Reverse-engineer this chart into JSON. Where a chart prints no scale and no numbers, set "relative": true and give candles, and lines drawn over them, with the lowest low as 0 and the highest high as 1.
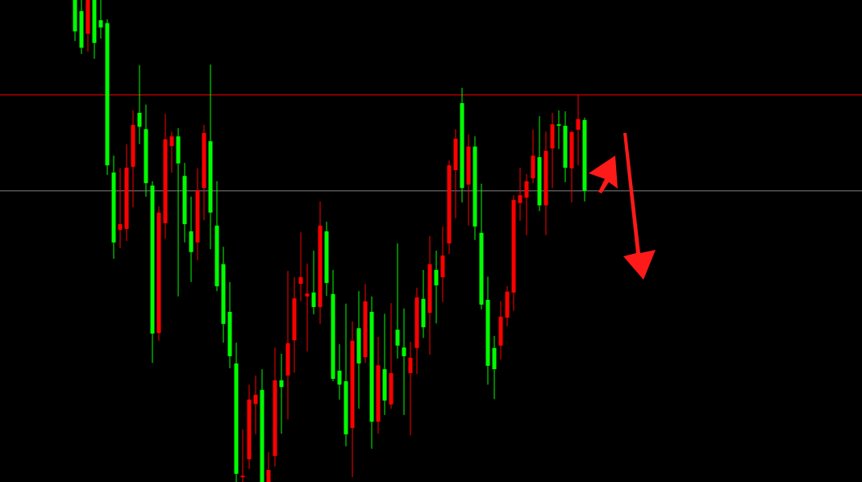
{
  "chart_data": {
    "type": "candlestick",
    "relative": true,
    "categories": [
      null,
      null,
      null,
      null,
      null,
      null,
      null,
      null,
      null,
      null,
      null,
      null,
      null,
      null,
      null,
      null,
      null,
      null,
      null,
      null,
      null,
      null,
      null,
      null,
      null,
      null,
      null,
      null,
      null,
      null,
      null,
      null,
      null,
      null,
      null,
      null,
      null,
      null,
      null,
      null,
      null,
      null,
      null,
      null,
      null,
      null,
      null,
      null,
      null,
      null,
      null,
      null,
      null,
      null,
      null,
      null,
      null,
      null,
      null,
      null,
      null,
      null,
      null,
      null,
      null,
      null,
      null,
      null,
      null,
      null,
      null,
      null,
      null,
      null,
      null,
      null,
      null,
      null,
      null,
      null
    ],
    "ohlc": [
      [
        1,
        1,
        0.915,
        0.935
      ],
      [
        0.977,
        1,
        0.888,
        0.901
      ],
      [
        0.93,
        1,
        0.893,
        1
      ],
      [
        1,
        1,
        0.878,
        0.911
      ],
      [
        0.958,
        1,
        0.92,
        0.943
      ],
      [
        0.952,
        0.96,
        0.637,
        0.657
      ],
      [
        0.642,
        0.677,
        0.463,
        0.497
      ],
      [
        0.523,
        0.651,
        0.485,
        0.535
      ],
      [
        0.525,
        0.701,
        0.5,
        0.652
      ],
      [
        0.654,
        0.771,
        0.57,
        0.741
      ],
      [
        0.766,
        0.865,
        0.701,
        0.737
      ],
      [
        0.732,
        0.783,
        0.592,
        0.62
      ],
      [
        0.615,
        0.624,
        0.247,
        0.308
      ],
      [
        0.309,
        0.572,
        0.293,
        0.559
      ],
      [
        0.537,
        0.764,
        0.505,
        0.711
      ],
      [
        0.697,
        0.727,
        0.642,
        0.717
      ],
      [
        0.717,
        0.734,
        0.385,
        0.661
      ],
      [
        0.635,
        0.662,
        0.497,
        0.535
      ],
      [
        0.52,
        0.592,
        0.415,
        0.477
      ],
      [
        0.497,
        0.651,
        0.46,
        0.605
      ],
      [
        0.61,
        0.741,
        0.543,
        0.724
      ],
      [
        0.707,
        0.866,
        0.483,
        0.559
      ],
      [
        0.532,
        0.624,
        0.396,
        0.406
      ],
      [
        0.452,
        0.488,
        0.289,
        0.328
      ],
      [
        0.353,
        0.415,
        0.236,
        0.261
      ],
      [
        0.246,
        0.289,
        0,
        0.017
      ],
      [
        0.01,
        0.109,
        0,
        0.013
      ],
      [
        0.047,
        0.202,
        0.027,
        0.171
      ],
      [
        0.162,
        0.221,
        0.099,
        0.181
      ],
      [
        0.191,
        0.234,
        0,
        0
      ],
      [
        0,
        0.062,
        0,
        0.025
      ],
      [
        0.054,
        0.279,
        0.032,
        0.211
      ],
      [
        0.211,
        0.266,
        0.1,
        0.197
      ],
      [
        0.221,
        0.438,
        0.13,
        0.288
      ],
      [
        0.294,
        0.425,
        0.227,
        0.381
      ],
      [
        0.411,
        0.518,
        0.375,
        0.425
      ],
      [
        0.385,
        0.453,
        0.271,
        0.391
      ],
      [
        0.393,
        0.48,
        0.348,
        0.363
      ],
      [
        0.363,
        0.582,
        0.328,
        0.532
      ],
      [
        0.52,
        0.54,
        0.386,
        0.413
      ],
      [
        0.39,
        0.44,
        0.209,
        0.214
      ],
      [
        0.231,
        0.286,
        0.171,
        0.202
      ],
      [
        0.209,
        0.37,
        0.074,
        0.099
      ],
      [
        0.112,
        0.333,
        0.01,
        0.293
      ],
      [
        0.319,
        0.396,
        0.152,
        0.246
      ],
      [
        0.259,
        0.411,
        0.247,
        0.375
      ],
      [
        0.353,
        0.385,
        0.069,
        0.125
      ],
      [
        0.125,
        0.301,
        0.1,
        0.242
      ],
      [
        0.234,
        0.349,
        0.139,
        0.169
      ],
      [
        0.161,
        0.371,
        0.152,
        0.226
      ],
      [
        0.316,
        0.495,
        0.256,
        0.283
      ],
      [
        0.279,
        0.36,
        0.139,
        0.261
      ],
      [
        0.226,
        0.291,
        0.097,
        0.258
      ],
      [
        0.278,
        0.403,
        0.224,
        0.383
      ],
      [
        0.38,
        0.44,
        0.299,
        0.321
      ],
      [
        0.351,
        0.51,
        0.264,
        0.452
      ],
      [
        0.44,
        0.48,
        0.329,
        0.408
      ],
      [
        0.425,
        0.53,
        0.373,
        0.47
      ],
      [
        0.495,
        0.667,
        0.473,
        0.657
      ],
      [
        0.647,
        0.732,
        0.547,
        0.712
      ],
      [
        0.786,
        0.818,
        0.58,
        0.61
      ],
      [
        0.617,
        0.721,
        0.532,
        0.696
      ],
      [
        0.696,
        0.717,
        0.502,
        0.53
      ],
      [
        0.517,
        0.619,
        0.358,
        0.368
      ],
      [
        0.378,
        0.426,
        0.202,
        0.241
      ],
      [
        0.278,
        0.303,
        0.172,
        0.234
      ],
      [
        0.283,
        0.375,
        0.254,
        0.343
      ],
      [
        0.341,
        0.406,
        0.323,
        0.395
      ],
      [
        0.393,
        0.595,
        0.355,
        0.585
      ],
      [
        0.579,
        0.652,
        0.542,
        0.595
      ],
      [
        0.59,
        0.639,
        0.512,
        0.624
      ],
      [
        0.63,
        0.731,
        0.62,
        0.677
      ],
      [
        0.674,
        0.759,
        0.562,
        0.574
      ],
      [
        0.574,
        0.727,
        0.512,
        0.687
      ],
      [
        0.692,
        0.766,
        0.61,
        0.742
      ],
      [
        0.742,
        0.771,
        0.691,
        0.739
      ],
      [
        0.739,
        0.769,
        0.622,
        0.652
      ],
      [
        0.651,
        0.729,
        0.58,
        0.726
      ],
      [
        0.731,
        0.803,
        0.657,
        0.753
      ],
      [
        0.751,
        0.756,
        0.582,
        0.604
      ]
    ],
    "colors": [
      "#00ff00",
      "#00ff00",
      "#ff0000",
      "#00ff00",
      "#00ff00",
      "#00ff00",
      "#00ff00",
      "#ff0000",
      "#ff0000",
      "#ff0000",
      "#00ff00",
      "#00ff00",
      "#00ff00",
      "#ff0000",
      "#ff0000",
      "#ff0000",
      "#00ff00",
      "#00ff00",
      "#00ff00",
      "#ff0000",
      "#ff0000",
      "#00ff00",
      "#00ff00",
      "#00ff00",
      "#00ff00",
      "#00ff00",
      "#ff0000",
      "#ff0000",
      "#ff0000",
      "#00ff00",
      "#ff0000",
      "#ff0000",
      "#00ff00",
      "#ff0000",
      "#ff0000",
      "#ff0000",
      "#ff0000",
      "#00ff00",
      "#ff0000",
      "#00ff00",
      "#00ff00",
      "#00ff00",
      "#00ff00",
      "#ff0000",
      "#00ff00",
      "#ff0000",
      "#00ff00",
      "#ff0000",
      "#00ff00",
      "#ff0000",
      "#00ff00",
      "#00ff00",
      "#ff0000",
      "#ff0000",
      "#00ff00",
      "#ff0000",
      "#00ff00",
      "#ff0000",
      "#ff0000",
      "#ff0000",
      "#00ff00",
      "#ff0000",
      "#00ff00",
      "#00ff00",
      "#00ff00",
      "#00ff00",
      "#ff0000",
      "#ff0000",
      "#ff0000",
      "#ff0000",
      "#ff0000",
      "#ff0000",
      "#00ff00",
      "#ff0000",
      "#ff0000",
      "#00ff00",
      "#00ff00",
      "#ff0000",
      "#ff0000",
      "#00ff00"
    ],
    "ref_lines": [
      {
        "axis": "y",
        "value": 0.803,
        "color": "#ff0000"
      },
      {
        "axis": "y",
        "value": 0.604,
        "color": "#808080"
      }
    ]
  }
}
